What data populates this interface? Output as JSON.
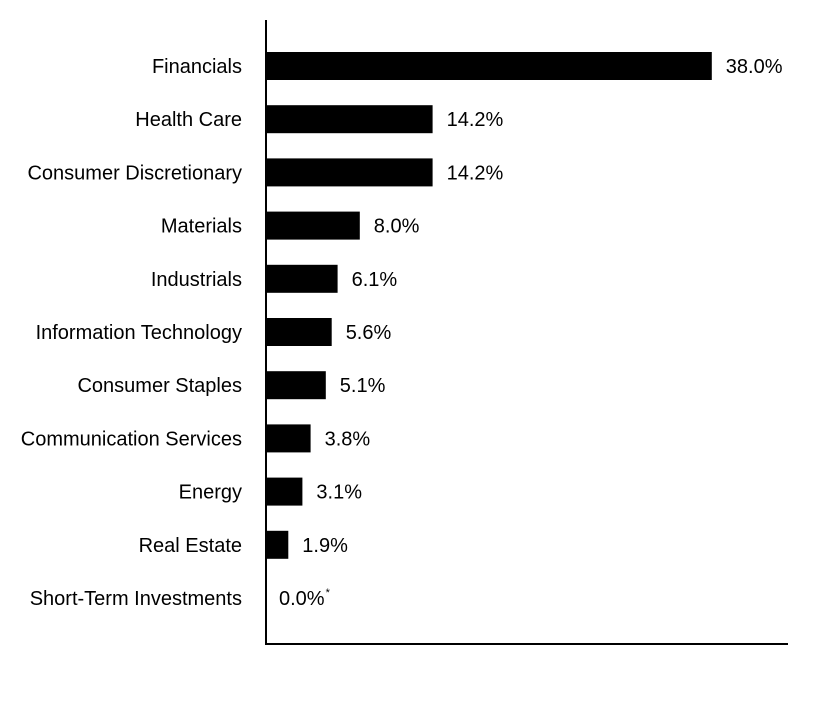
{
  "chart_data": {
    "type": "bar",
    "orientation": "horizontal",
    "categories": [
      "Financials",
      "Health Care",
      "Consumer Discretionary",
      "Materials",
      "Industrials",
      "Information Technology",
      "Consumer Staples",
      "Communication Services",
      "Energy",
      "Real Estate",
      "Short-Term Investments"
    ],
    "values": [
      38.0,
      14.2,
      14.2,
      8.0,
      6.1,
      5.6,
      5.1,
      3.8,
      3.1,
      1.9,
      0.0
    ],
    "value_labels": [
      "38.0%",
      "14.2%",
      "14.2%",
      "8.0%",
      "6.1%",
      "5.6%",
      "5.1%",
      "3.8%",
      "3.1%",
      "1.9%",
      "0.0%"
    ],
    "value_label_marks": [
      "",
      "",
      "",
      "",
      "",
      "",
      "",
      "",
      "",
      "",
      "*"
    ],
    "title": "",
    "xlabel": "",
    "ylabel": "",
    "xlim": [
      0,
      44.5
    ],
    "bar_color": "#000000",
    "grid": false,
    "legend": "none"
  }
}
